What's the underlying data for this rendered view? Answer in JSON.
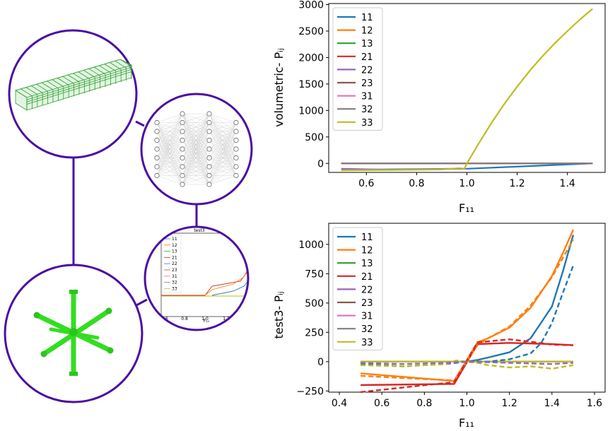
{
  "colors": {
    "circle_border": "#4a0fa3",
    "lattice_green": "#2e9e2e",
    "star_green": "#33dd22",
    "s11": "#1f77b4",
    "s12": "#ff7f0e",
    "s13": "#2ca02c",
    "s21": "#d62728",
    "s22": "#9467bd",
    "s23": "#8c564b",
    "s31": "#e377c2",
    "s32": "#7f7f7f",
    "s33": "#bcbd22"
  },
  "mini_plot": {
    "title": "test3",
    "xlabel": "F₁₁",
    "xticks": [
      "0.6",
      "0.8",
      "1.0",
      "1.2"
    ],
    "legend": [
      "11",
      "12",
      "13",
      "21",
      "22",
      "23",
      "31",
      "32",
      "33"
    ]
  },
  "chart_data": [
    {
      "type": "line",
      "title": "",
      "xlabel": "F₁₁",
      "ylabel": "volumetric- Pᵢⱼ",
      "xlim": [
        0.45,
        1.55
      ],
      "ylim": [
        -170,
        3020
      ],
      "xticks": [
        "0.6",
        "0.8",
        "1.0",
        "1.2",
        "1.4"
      ],
      "xtick_values": [
        0.6,
        0.8,
        1.0,
        1.2,
        1.4
      ],
      "yticks": [
        "0",
        "500",
        "1000",
        "1500",
        "2000",
        "2500",
        "3000"
      ],
      "ytick_values": [
        0,
        500,
        1000,
        1500,
        2000,
        2500,
        3000
      ],
      "legend_position": "top-left",
      "series": [
        {
          "name": "11",
          "x": [
            0.5,
            1.0,
            1.5
          ],
          "y": [
            -120,
            -100,
            0
          ]
        },
        {
          "name": "12",
          "x": [
            0.5,
            1.5
          ],
          "y": [
            0,
            0
          ]
        },
        {
          "name": "13",
          "x": [
            0.5,
            1.5
          ],
          "y": [
            0,
            0
          ]
        },
        {
          "name": "21",
          "x": [
            0.5,
            1.5
          ],
          "y": [
            0,
            0
          ]
        },
        {
          "name": "22",
          "x": [
            0.5,
            0.7,
            0.9,
            1.0
          ],
          "y": [
            -100,
            -120,
            -105,
            -100
          ]
        },
        {
          "name": "23",
          "x": [
            0.5,
            1.5
          ],
          "y": [
            0,
            0
          ]
        },
        {
          "name": "31",
          "x": [
            0.5,
            1.5
          ],
          "y": [
            0,
            0
          ]
        },
        {
          "name": "32",
          "x": [
            0.5,
            1.5
          ],
          "y": [
            0,
            0
          ]
        },
        {
          "name": "33",
          "x": [
            0.5,
            0.7,
            0.9,
            0.97,
            0.99,
            1.0,
            1.05,
            1.1,
            1.15,
            1.2,
            1.25,
            1.3,
            1.35,
            1.4,
            1.45,
            1.5
          ],
          "y": [
            -130,
            -125,
            -115,
            -90,
            -100,
            0,
            400,
            780,
            1130,
            1450,
            1750,
            2020,
            2270,
            2500,
            2720,
            2920
          ]
        }
      ]
    },
    {
      "type": "line",
      "title": "",
      "xlabel": "F₁₁",
      "ylabel": "test3- Pᵢⱼ",
      "xlim": [
        0.35,
        1.65
      ],
      "ylim": [
        -260,
        1180
      ],
      "xticks": [
        "0.4",
        "0.6",
        "0.8",
        "1.0",
        "1.2",
        "1.4",
        "1.6"
      ],
      "xtick_values": [
        0.4,
        0.6,
        0.8,
        1.0,
        1.2,
        1.4,
        1.6
      ],
      "yticks": [
        "−250",
        "0",
        "250",
        "500",
        "750",
        "1000"
      ],
      "ytick_values": [
        -250,
        0,
        250,
        500,
        750,
        1000
      ],
      "legend_position": "top-left",
      "series": [
        {
          "name": "11",
          "style": "solid",
          "x": [
            0.5,
            1.0,
            1.05,
            1.1,
            1.2,
            1.3,
            1.4,
            1.45,
            1.5
          ],
          "y": [
            0,
            0,
            15,
            35,
            80,
            200,
            470,
            760,
            1080
          ]
        },
        {
          "name": "12",
          "style": "solid",
          "x": [
            0.5,
            0.94,
            1.05,
            1.1,
            1.2,
            1.3,
            1.4,
            1.45,
            1.5
          ],
          "y": [
            -100,
            -165,
            165,
            200,
            290,
            460,
            730,
            920,
            1125
          ]
        },
        {
          "name": "13",
          "style": "solid",
          "x": [
            0.5,
            1.5
          ],
          "y": [
            0,
            0
          ]
        },
        {
          "name": "21",
          "style": "solid",
          "x": [
            0.5,
            0.94,
            1.05,
            1.2,
            1.4,
            1.5
          ],
          "y": [
            -200,
            -190,
            150,
            160,
            150,
            140
          ]
        },
        {
          "name": "22",
          "style": "solid",
          "x": [
            0.5,
            1.5
          ],
          "y": [
            0,
            0
          ]
        },
        {
          "name": "23",
          "style": "solid",
          "x": [
            0.5,
            1.5
          ],
          "y": [
            0,
            0
          ]
        },
        {
          "name": "31",
          "style": "solid",
          "x": [
            0.5,
            1.5
          ],
          "y": [
            0,
            0
          ]
        },
        {
          "name": "32",
          "style": "solid",
          "x": [
            0.5,
            1.5
          ],
          "y": [
            0,
            0
          ]
        },
        {
          "name": "33",
          "style": "solid",
          "x": [
            0.5,
            1.5
          ],
          "y": [
            0,
            0
          ]
        },
        {
          "style": "dashed",
          "color_key": "s11",
          "x": [
            0.5,
            0.7,
            0.9,
            1.0,
            1.1,
            1.2,
            1.3,
            1.35,
            1.4,
            1.45,
            1.5
          ],
          "y": [
            -20,
            -40,
            -20,
            0,
            0,
            20,
            70,
            160,
            330,
            580,
            820
          ]
        },
        {
          "style": "dashed",
          "color_key": "s12",
          "x": [
            0.5,
            0.7,
            0.94,
            1.05,
            1.1,
            1.2,
            1.3,
            1.4,
            1.45,
            1.5
          ],
          "y": [
            -120,
            -140,
            -160,
            140,
            200,
            300,
            480,
            720,
            880,
            1040
          ]
        },
        {
          "style": "dashed",
          "color_key": "s21",
          "x": [
            0.5,
            0.7,
            0.94,
            1.05,
            1.2,
            1.3,
            1.4,
            1.5
          ],
          "y": [
            -260,
            -220,
            -175,
            165,
            190,
            170,
            145,
            140
          ]
        },
        {
          "style": "dashed",
          "color_key": "s33",
          "x": [
            0.5,
            0.7,
            0.9,
            0.95,
            1.05,
            1.1,
            1.2,
            1.3,
            1.4,
            1.5
          ],
          "y": [
            -30,
            -40,
            -20,
            10,
            -10,
            -30,
            -50,
            -40,
            -60,
            -30
          ]
        },
        {
          "style": "dashed",
          "color_key": "s22",
          "x": [
            0.5,
            0.7,
            0.9,
            1.0,
            1.2,
            1.4,
            1.5
          ],
          "y": [
            -10,
            -20,
            -10,
            0,
            -10,
            -20,
            -10
          ]
        }
      ]
    }
  ]
}
